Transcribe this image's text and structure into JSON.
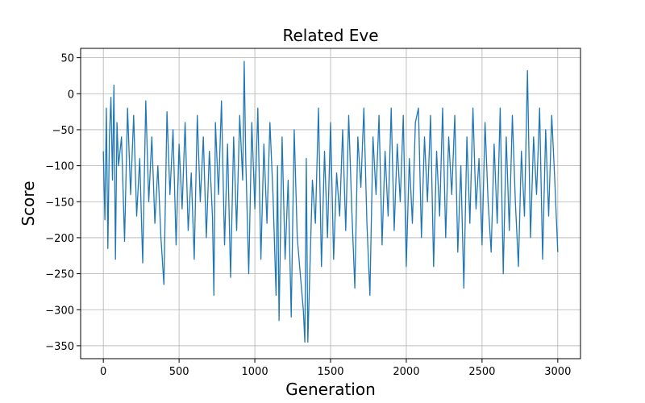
{
  "chart_data": {
    "type": "line",
    "title": "Related Eve",
    "xlabel": "Generation",
    "ylabel": "Score",
    "xlim": [
      -150,
      3150
    ],
    "ylim": [
      -368,
      63
    ],
    "xticks": [
      0,
      500,
      1000,
      1500,
      2000,
      2500,
      3000
    ],
    "yticks": [
      50,
      0,
      -50,
      -100,
      -150,
      -200,
      -250,
      -300,
      -350
    ],
    "grid": true,
    "series": [
      {
        "color": "#1f77b4",
        "x": [
          0,
          10,
          20,
          30,
          40,
          50,
          60,
          70,
          80,
          90,
          100,
          120,
          140,
          160,
          180,
          200,
          220,
          240,
          260,
          280,
          300,
          320,
          340,
          360,
          380,
          400,
          420,
          440,
          460,
          480,
          500,
          520,
          540,
          560,
          580,
          600,
          620,
          640,
          660,
          680,
          700,
          720,
          730,
          740,
          760,
          780,
          800,
          820,
          840,
          860,
          880,
          900,
          920,
          930,
          940,
          960,
          980,
          1000,
          1020,
          1040,
          1060,
          1080,
          1100,
          1120,
          1140,
          1150,
          1160,
          1180,
          1200,
          1220,
          1240,
          1260,
          1280,
          1300,
          1320,
          1330,
          1340,
          1350,
          1360,
          1380,
          1400,
          1420,
          1440,
          1460,
          1480,
          1500,
          1520,
          1540,
          1560,
          1580,
          1600,
          1620,
          1640,
          1660,
          1680,
          1700,
          1720,
          1740,
          1760,
          1780,
          1800,
          1820,
          1840,
          1860,
          1880,
          1900,
          1920,
          1940,
          1960,
          1980,
          2000,
          2020,
          2040,
          2060,
          2080,
          2100,
          2120,
          2140,
          2160,
          2180,
          2200,
          2220,
          2240,
          2260,
          2280,
          2300,
          2320,
          2340,
          2360,
          2380,
          2400,
          2420,
          2440,
          2460,
          2480,
          2500,
          2520,
          2540,
          2560,
          2580,
          2600,
          2620,
          2640,
          2660,
          2680,
          2700,
          2720,
          2740,
          2760,
          2780,
          2800,
          2820,
          2840,
          2860,
          2880,
          2900,
          2920,
          2940,
          2960,
          2980,
          3000
        ],
        "y": [
          -80,
          -175,
          -20,
          -215,
          -60,
          -5,
          -120,
          12,
          -230,
          -40,
          -100,
          -60,
          -205,
          -20,
          -140,
          -30,
          -170,
          -90,
          -235,
          -10,
          -150,
          -60,
          -180,
          -100,
          -200,
          -265,
          -25,
          -140,
          -50,
          -210,
          -70,
          -160,
          -40,
          -190,
          -110,
          -230,
          -30,
          -150,
          -60,
          -200,
          -80,
          -170,
          -280,
          -40,
          -140,
          -10,
          -210,
          -70,
          -255,
          -60,
          -190,
          -30,
          -120,
          45,
          -90,
          -250,
          -40,
          -160,
          -20,
          -230,
          -70,
          -180,
          -40,
          -140,
          -280,
          -100,
          -315,
          -60,
          -230,
          -120,
          -310,
          -50,
          -200,
          -250,
          -300,
          -345,
          -90,
          -345,
          -270,
          -120,
          -180,
          -20,
          -240,
          -80,
          -200,
          -40,
          -230,
          -110,
          -170,
          -50,
          -190,
          -30,
          -160,
          -270,
          -60,
          -130,
          -20,
          -180,
          -280,
          -60,
          -140,
          -30,
          -210,
          -80,
          -170,
          -20,
          -190,
          -70,
          -150,
          -30,
          -240,
          -90,
          -180,
          -40,
          -20,
          -200,
          -60,
          -150,
          -30,
          -240,
          -80,
          -170,
          -20,
          -200,
          -60,
          -140,
          -30,
          -220,
          -100,
          -270,
          -60,
          -180,
          -20,
          -160,
          -90,
          -210,
          -40,
          -150,
          -220,
          -70,
          -180,
          -20,
          -250,
          -60,
          -190,
          -30,
          -150,
          -240,
          -80,
          -170,
          32,
          -200,
          -60,
          -140,
          -20,
          -230,
          -50,
          -170,
          -30,
          -120,
          -220
        ]
      }
    ]
  }
}
